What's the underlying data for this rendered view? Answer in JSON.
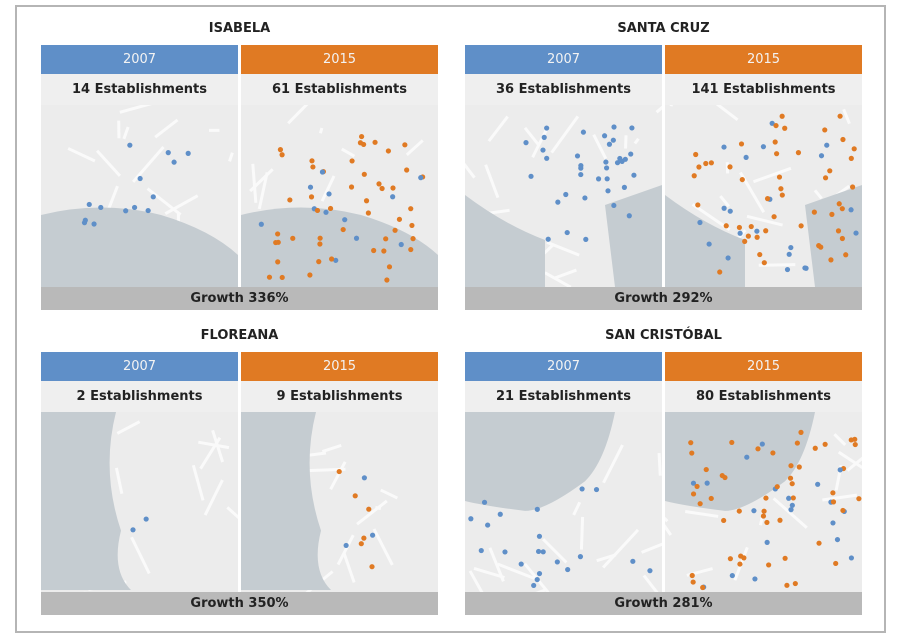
{
  "colors": {
    "y2007": "#5f8fc8",
    "y2015": "#e07a23",
    "growth_bar": "#b9b9b9",
    "water": "#c5ccd1"
  },
  "panels": [
    {
      "title": "ISABELA",
      "year_a": "2007",
      "year_b": "2015",
      "est_a": "14 Establishments",
      "est_b": "61 Establishments",
      "growth": "Growth 336%"
    },
    {
      "title": "SANTA CRUZ",
      "year_a": "2007",
      "year_b": "2015",
      "est_a": "36 Establishments",
      "est_b": "141 Establishments",
      "growth": "Growth 292%"
    },
    {
      "title": "FLOREANA",
      "year_a": "2007",
      "year_b": "2015",
      "est_a": "2 Establishments",
      "est_b": "9 Establishments",
      "growth": "Growth 350%"
    },
    {
      "title": "SAN CRISTÓBAL",
      "year_a": "2007",
      "year_b": "2015",
      "est_a": "21 Establishments",
      "est_b": "80 Establishments",
      "growth": "Growth 281%"
    }
  ]
}
